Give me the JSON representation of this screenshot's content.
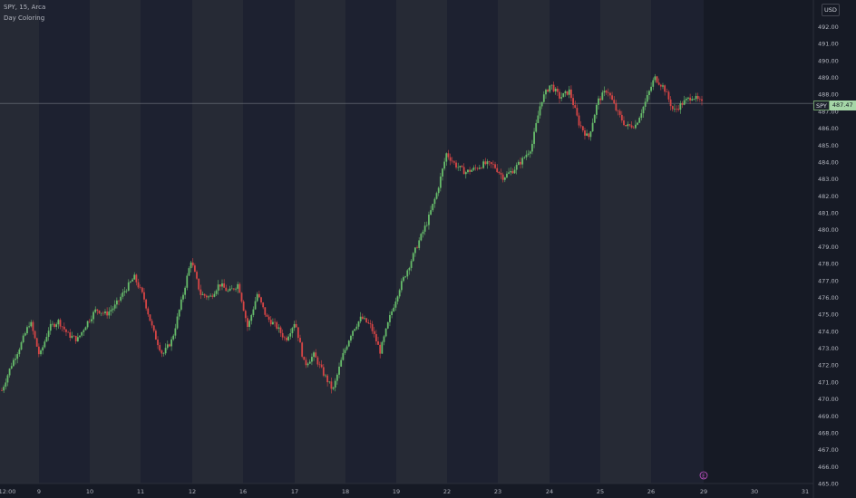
{
  "header": {
    "symbol": "SPY",
    "interval": "15",
    "exchange": "Arca",
    "indicator": "Day Coloring"
  },
  "currency": "USD",
  "price_badge": {
    "symbol": "SPY",
    "value": "487.47"
  },
  "event_marker": "E",
  "colors": {
    "background": "#161a25",
    "band_light": "#262a35",
    "band_dark": "#1d2130",
    "up": "#66bb6a",
    "down": "#d64545",
    "axis_text": "#b2b5be",
    "price_line": "#8a8f99"
  },
  "chart_data": {
    "type": "candlestick",
    "y_ticks": [
      "492.00",
      "491.00",
      "490.00",
      "489.00",
      "488.00",
      "487.00",
      "486.00",
      "485.00",
      "484.00",
      "483.00",
      "482.00",
      "481.00",
      "480.00",
      "479.00",
      "478.00",
      "477.00",
      "476.00",
      "475.00",
      "474.00",
      "473.00",
      "472.00",
      "471.00",
      "470.00",
      "469.00",
      "468.00",
      "467.00",
      "466.00",
      "465.00"
    ],
    "x_ticks": [
      "12:00",
      "9",
      "10",
      "11",
      "12",
      "16",
      "17",
      "18",
      "19",
      "22",
      "23",
      "24",
      "25",
      "26",
      "29",
      "30",
      "31"
    ],
    "ylim": [
      465,
      492.4
    ],
    "last_price": 487.47,
    "day_boundaries": [
      "Jan 8",
      "Jan 9",
      "Jan 10",
      "Jan 11",
      "Jan 12",
      "Jan 16",
      "Jan 17",
      "Jan 18",
      "Jan 19",
      "Jan 22",
      "Jan 23",
      "Jan 24",
      "Jan 25",
      "Jan 26"
    ],
    "close_path": [
      [
        "Jan 8",
        470.5
      ],
      [
        "Jan 8",
        472.0
      ],
      [
        "Jan 8",
        473.2
      ],
      [
        "Jan 8",
        474.6
      ],
      [
        "Jan 9",
        472.5
      ],
      [
        "Jan 9",
        474.2
      ],
      [
        "Jan 9",
        474.6
      ],
      [
        "Jan 9",
        473.8
      ],
      [
        "Jan 9",
        473.5
      ],
      [
        "Jan 10",
        474.5
      ],
      [
        "Jan 10",
        475.3
      ],
      [
        "Jan 10",
        475.0
      ],
      [
        "Jan 10",
        475.5
      ],
      [
        "Jan 10",
        476.4
      ],
      [
        "Jan 11",
        477.2
      ],
      [
        "Jan 11",
        476.0
      ],
      [
        "Jan 11",
        474.0
      ],
      [
        "Jan 11",
        472.6
      ],
      [
        "Jan 11",
        473.5
      ],
      [
        "Jan 12",
        475.8
      ],
      [
        "Jan 12",
        478.2
      ],
      [
        "Jan 12",
        476.2
      ],
      [
        "Jan 12",
        476.0
      ],
      [
        "Jan 12",
        476.8
      ],
      [
        "Jan 12",
        476.3
      ],
      [
        "Jan 16",
        476.8
      ],
      [
        "Jan 16",
        474.2
      ],
      [
        "Jan 16",
        476.2
      ],
      [
        "Jan 16",
        474.8
      ],
      [
        "Jan 16",
        474.3
      ],
      [
        "Jan 16",
        473.5
      ],
      [
        "Jan 16",
        474.6
      ],
      [
        "Jan 17",
        472.0
      ],
      [
        "Jan 17",
        472.6
      ],
      [
        "Jan 17",
        471.5
      ],
      [
        "Jan 17",
        470.5
      ],
      [
        "Jan 17",
        472.5
      ],
      [
        "Jan 18",
        474.0
      ],
      [
        "Jan 18",
        474.8
      ],
      [
        "Jan 18",
        474.3
      ],
      [
        "Jan 18",
        472.8
      ],
      [
        "Jan 18",
        474.8
      ],
      [
        "Jan 19",
        476.5
      ],
      [
        "Jan 19",
        477.8
      ],
      [
        "Jan 19",
        479.2
      ],
      [
        "Jan 19",
        480.5
      ],
      [
        "Jan 19",
        482.2
      ],
      [
        "Jan 22",
        484.5
      ],
      [
        "Jan 22",
        483.8
      ],
      [
        "Jan 22",
        483.4
      ],
      [
        "Jan 22",
        483.6
      ],
      [
        "Jan 23",
        483.9
      ],
      [
        "Jan 23",
        483.8
      ],
      [
        "Jan 23",
        483.1
      ],
      [
        "Jan 23",
        483.5
      ],
      [
        "Jan 23",
        484.1
      ],
      [
        "Jan 23",
        484.9
      ],
      [
        "Jan 24",
        487.6
      ],
      [
        "Jan 24",
        488.6
      ],
      [
        "Jan 24",
        487.8
      ],
      [
        "Jan 24",
        488.2
      ],
      [
        "Jan 25",
        486.3
      ],
      [
        "Jan 25",
        485.4
      ],
      [
        "Jan 25",
        487.6
      ],
      [
        "Jan 25",
        488.3
      ],
      [
        "Jan 25",
        487.0
      ],
      [
        "Jan 26",
        486.1
      ],
      [
        "Jan 26",
        486.2
      ],
      [
        "Jan 26",
        487.5
      ],
      [
        "Jan 26",
        489.0
      ],
      [
        "Jan 26",
        488.4
      ],
      [
        "Jan 26",
        487.0
      ],
      [
        "Jan 26",
        487.5
      ],
      [
        "Jan 26",
        487.9
      ],
      [
        "Jan 26",
        487.47
      ]
    ]
  }
}
